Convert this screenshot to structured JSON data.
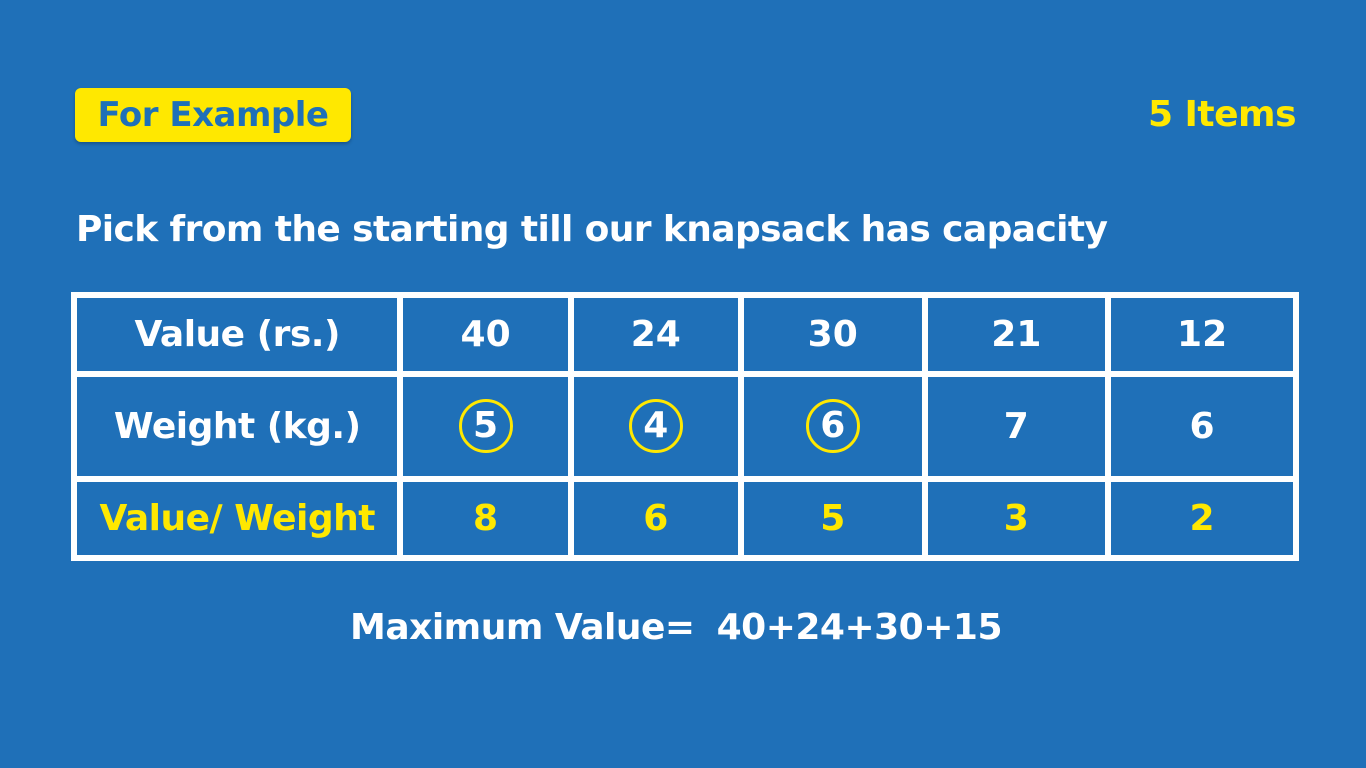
{
  "tag": "For Example",
  "items_count": "5 Items",
  "instruction": "Pick from the starting till our knapsack has capacity",
  "table": {
    "value_label": "Value (rs.)",
    "weight_label": "Weight (kg.)",
    "ratio_label": "Value/ Weight",
    "values": [
      "40",
      "24",
      "30",
      "21",
      "12"
    ],
    "weights": [
      "5",
      "4",
      "6",
      "7",
      "6"
    ],
    "ratios": [
      "8",
      "6",
      "5",
      "3",
      "2"
    ],
    "circled_weight_columns": [
      1,
      2,
      3
    ]
  },
  "max_label": "Maximum Value=",
  "max_expression": "40+24+30+15",
  "colors": {
    "background": "#1f70b8",
    "accent": "#ffe800",
    "text": "#ffffff"
  }
}
